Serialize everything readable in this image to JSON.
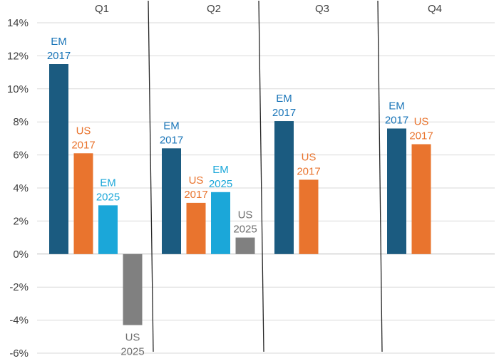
{
  "chart_data": {
    "type": "bar",
    "title": "",
    "xlabel": "",
    "ylabel": "",
    "ylim": [
      -6,
      14
    ],
    "yticks": [
      -6,
      -4,
      -2,
      0,
      2,
      4,
      6,
      8,
      10,
      12,
      14
    ],
    "ytick_labels": [
      "-6%",
      "-4%",
      "-2%",
      "0%",
      "2%",
      "4%",
      "6%",
      "8%",
      "10%",
      "12%",
      "14%"
    ],
    "grid": true,
    "colors": {
      "EM 2017": "#1b5b80",
      "US 2017": "#e9742e",
      "EM 2025": "#1ba7d9",
      "US 2025": "#808080"
    },
    "label_colors": {
      "EM 2017": "#1a75b8",
      "US 2017": "#e9742e",
      "EM 2025": "#1ba7d9",
      "US 2025": "#707070"
    },
    "quarters": [
      {
        "name": "Q1",
        "bars": [
          {
            "series": "EM 2017",
            "line1": "EM",
            "line2": "2017",
            "value": 11.5
          },
          {
            "series": "US 2017",
            "line1": "US",
            "line2": "2017",
            "value": 6.1
          },
          {
            "series": "EM 2025",
            "line1": "EM",
            "line2": "2025",
            "value": 2.95
          },
          {
            "series": "US 2025",
            "line1": "US",
            "line2": "2025",
            "value": -4.3
          }
        ]
      },
      {
        "name": "Q2",
        "bars": [
          {
            "series": "EM 2017",
            "line1": "EM",
            "line2": "2017",
            "value": 6.4
          },
          {
            "series": "US 2017",
            "line1": "US",
            "line2": "2017",
            "value": 3.1
          },
          {
            "series": "EM 2025",
            "line1": "EM",
            "line2": "2025",
            "value": 3.75
          },
          {
            "series": "US 2025",
            "line1": "US",
            "line2": "2025",
            "value": 1.0
          }
        ]
      },
      {
        "name": "Q3",
        "bars": [
          {
            "series": "EM 2017",
            "line1": "EM",
            "line2": "2017",
            "value": 8.05
          },
          {
            "series": "US 2017",
            "line1": "US",
            "line2": "2017",
            "value": 4.5
          }
        ]
      },
      {
        "name": "Q4",
        "bars": [
          {
            "series": "EM 2017",
            "line1": "EM",
            "line2": "2017",
            "value": 7.6
          },
          {
            "series": "US 2017",
            "line1": "US",
            "line2": "2017",
            "value": 6.65
          }
        ]
      }
    ]
  }
}
